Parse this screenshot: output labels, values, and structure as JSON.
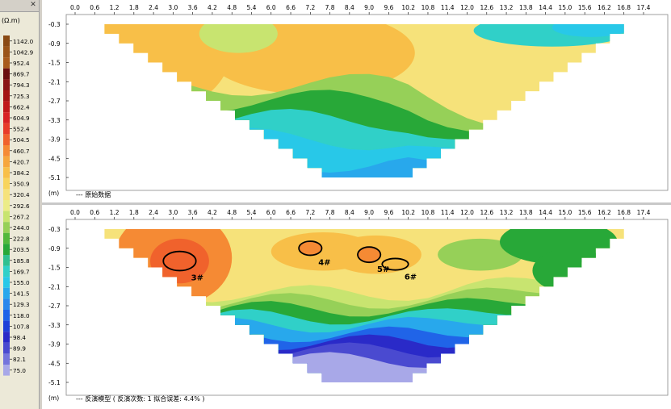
{
  "scale": {
    "unit": "(Ω.m)",
    "labels": [
      "1142.0",
      "1042.9",
      "952.4",
      "869.7",
      "794.3",
      "725.3",
      "662.4",
      "604.9",
      "552.4",
      "504.5",
      "460.7",
      "420.7",
      "384.2",
      "350.9",
      "320.4",
      "292.6",
      "267.2",
      "244.0",
      "222.8",
      "203.5",
      "185.8",
      "169.7",
      "155.0",
      "141.5",
      "129.3",
      "118.0",
      "107.8",
      "98.4",
      "89.9",
      "82.1",
      "75.0"
    ],
    "colors": [
      "#8a4a14",
      "#9a5418",
      "#a85b1c",
      "#6b1010",
      "#8a1414",
      "#a51414",
      "#c01818",
      "#d82222",
      "#e83c28",
      "#f0622c",
      "#f58a34",
      "#f6a63c",
      "#f8bf48",
      "#f8d45c",
      "#f6e27a",
      "#ecec88",
      "#c8e470",
      "#96d058",
      "#52b83c",
      "#28a838",
      "#30c090",
      "#30d0c8",
      "#28c8e8",
      "#28a8ec",
      "#2888ec",
      "#2064e8",
      "#2040d8",
      "#2a2ac8",
      "#4a4ad0",
      "#7474dc",
      "#a8a8e8"
    ]
  },
  "chart_data": [
    {
      "type": "heatmap",
      "title": "原始数据",
      "footer": "--- 原始数据",
      "x_ticks": [
        "0.0",
        "0.6",
        "1.2",
        "1.8",
        "2.4",
        "3.0",
        "3.6",
        "4.2",
        "4.8",
        "5.4",
        "6.0",
        "6.6",
        "7.2",
        "7.8",
        "8.4",
        "9.0",
        "9.6",
        "10.2",
        "10.8",
        "11.4",
        "12.0",
        "12.6",
        "13.2",
        "13.8",
        "14.4",
        "15.0",
        "15.6",
        "16.2",
        "16.8",
        "17.4"
      ],
      "y_ticks": [
        "-0.3",
        "-0.9",
        "-1.5",
        "-2.1",
        "-2.7",
        "-3.3",
        "-3.9",
        "-4.5",
        "-5.1"
      ],
      "y_unit": "(m)",
      "xlim": [
        0,
        17.4
      ],
      "ylim": [
        -0.3,
        -5.1
      ],
      "bands": [
        {
          "color": "#f8bf48",
          "rows": [
            [
              0.9,
              11.0
            ],
            [
              1.2,
              11.2
            ],
            [
              1.6,
              11.2
            ],
            [
              2.6,
              11.0
            ],
            [
              3.2,
              10.8
            ],
            [
              4.4,
              10.6
            ]
          ]
        },
        {
          "color": "#f8d45c",
          "rows": [
            [
              4.0,
              9.6
            ],
            [
              4.4,
              10.0
            ],
            [
              5.0,
              10.2
            ]
          ]
        },
        {
          "color": "#96d058",
          "rows": [
            [
              4.8,
              11.4
            ],
            [
              5.0,
              11.6
            ],
            [
              5.6,
              11.8
            ],
            [
              6.0,
              12.0
            ],
            [
              6.4,
              12.2
            ]
          ]
        },
        {
          "color": "#28a838",
          "rows": [
            [
              5.4,
              12.6
            ],
            [
              5.6,
              12.8
            ],
            [
              6.0,
              13.0
            ],
            [
              6.6,
              13.4
            ],
            [
              7.0,
              13.6
            ],
            [
              7.6,
              13.6
            ]
          ]
        },
        {
          "color": "#30d0c8",
          "rows": [
            [
              6.4,
              13.8
            ],
            [
              7.0,
              13.8
            ],
            [
              7.4,
              13.6
            ],
            [
              7.8,
              13.2
            ],
            [
              8.2,
              12.6
            ]
          ]
        },
        {
          "color": "#28c8e8",
          "rows": [
            [
              7.2,
              13.2
            ],
            [
              7.6,
              12.6
            ],
            [
              8.0,
              12.0
            ],
            [
              8.4,
              11.0
            ],
            [
              8.8,
              10.0
            ]
          ]
        },
        {
          "color": "#28a8ec",
          "rows": [
            [
              8.2,
              10.6
            ],
            [
              8.4,
              10.0
            ],
            [
              8.6,
              9.6
            ]
          ]
        }
      ],
      "right_top": {
        "color": "#28c8e8",
        "x_from": 11.2,
        "x_to": 16.8
      }
    },
    {
      "type": "heatmap",
      "title": "反演模型",
      "footer": "--- 反演模型 ( 反演次数: 1  拟合误差: 4.4% )",
      "x_ticks": [
        "0.0",
        "0.6",
        "1.2",
        "1.8",
        "2.4",
        "3.0",
        "3.6",
        "4.2",
        "4.8",
        "5.4",
        "6.0",
        "6.6",
        "7.2",
        "7.8",
        "8.4",
        "9.0",
        "9.6",
        "10.2",
        "10.8",
        "11.4",
        "12.0",
        "12.6",
        "13.2",
        "13.8",
        "14.4",
        "15.0",
        "15.6",
        "16.2",
        "16.8",
        "17.4"
      ],
      "y_ticks": [
        "-0.3",
        "-0.9",
        "-1.5",
        "-2.1",
        "-2.7",
        "-3.3",
        "-3.9",
        "-4.5",
        "-5.1"
      ],
      "y_unit": "(m)",
      "xlim": [
        0,
        17.4
      ],
      "ylim": [
        -0.3,
        -5.1
      ],
      "annotations": [
        {
          "label": "3#",
          "x": 3.2,
          "y": -1.3,
          "rx": 0.5,
          "ry": 0.3
        },
        {
          "label": "4#",
          "x": 7.2,
          "y": -0.9,
          "rx": 0.35,
          "ry": 0.22
        },
        {
          "label": "5#",
          "x": 9.0,
          "y": -1.1,
          "rx": 0.35,
          "ry": 0.24
        },
        {
          "label": "6#",
          "x": 9.8,
          "y": -1.4,
          "rx": 0.4,
          "ry": 0.18
        }
      ]
    }
  ]
}
